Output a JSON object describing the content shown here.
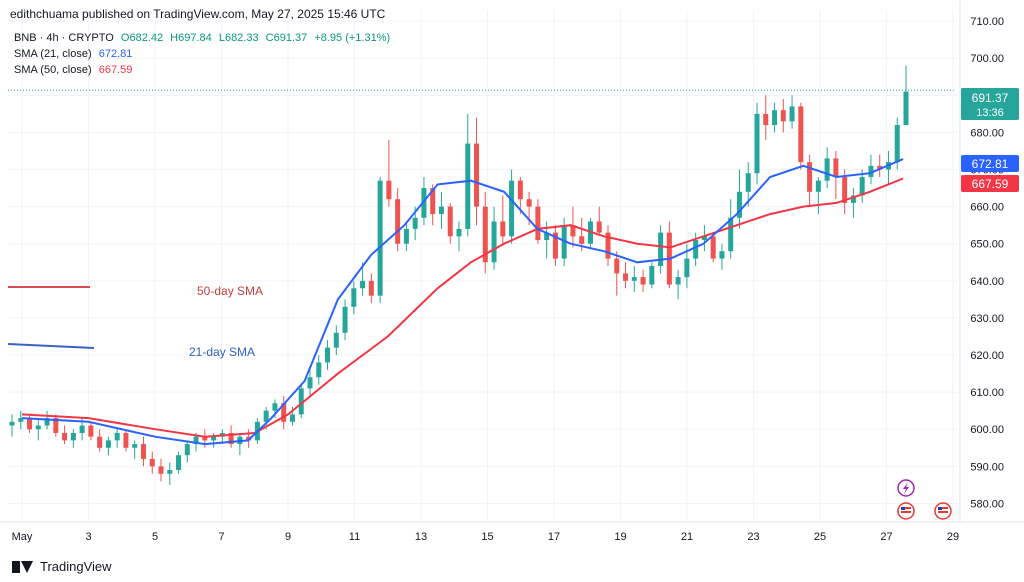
{
  "header": {
    "publisher": "edithchuama published on TradingView.com, May 27, 2025 15:46 UTC"
  },
  "legend": {
    "symbol_line": {
      "symbol": "BNB · 4h · CRYPTO",
      "open": "O682.42",
      "high": "H697.84",
      "low": "L682.33",
      "close": "C691.37",
      "change": "+8.95 (+1.31%)"
    },
    "sma21": {
      "label": "SMA (21, close)",
      "value": "672.81"
    },
    "sma50": {
      "label": "SMA (50, close)",
      "value": "667.59"
    }
  },
  "annotations": {
    "sma50_label": "50-day SMA",
    "sma21_label": "21-day SMA"
  },
  "price_badge": {
    "price": "691.37",
    "countdown": "13:36"
  },
  "sma21_badge": "672.81",
  "sma50_badge": "667.59",
  "footer": {
    "brand": "TradingView"
  },
  "colors": {
    "up": "#26a69a",
    "down": "#ef5350",
    "sma21": "#2962ff",
    "sma50": "#f23645",
    "price_line": "#26a69a"
  },
  "chart_data": {
    "type": "candlestick",
    "ylim": [
      575,
      713
    ],
    "y_ticks": [
      "580.00",
      "590.00",
      "600.00",
      "610.00",
      "620.00",
      "630.00",
      "640.00",
      "650.00",
      "660.00",
      "670.00",
      "680.00",
      "690.00",
      "700.00",
      "710.00"
    ],
    "x_ticks": [
      "May",
      "3",
      "5",
      "7",
      "9",
      "11",
      "13",
      "15",
      "17",
      "19",
      "21",
      "23",
      "25",
      "27",
      "29"
    ],
    "current_price": 691.37,
    "sma21": [
      [
        1,
        603
      ],
      [
        3,
        602
      ],
      [
        5,
        598
      ],
      [
        6.5,
        596
      ],
      [
        7.8,
        597
      ],
      [
        8.5,
        603
      ],
      [
        9.5,
        613
      ],
      [
        10.5,
        635
      ],
      [
        11.5,
        647
      ],
      [
        12.5,
        655
      ],
      [
        13.5,
        666
      ],
      [
        14.5,
        667
      ],
      [
        15.5,
        664
      ],
      [
        16.5,
        654
      ],
      [
        17.5,
        650
      ],
      [
        18.5,
        648
      ],
      [
        19.5,
        645
      ],
      [
        20.5,
        646
      ],
      [
        21.5,
        650
      ],
      [
        22.5,
        658
      ],
      [
        23.5,
        668
      ],
      [
        24.5,
        671
      ],
      [
        25.5,
        668
      ],
      [
        26.5,
        669
      ],
      [
        27.5,
        672.81
      ]
    ],
    "sma50": [
      [
        1,
        604
      ],
      [
        3,
        603
      ],
      [
        5,
        600
      ],
      [
        6.5,
        598
      ],
      [
        8,
        599
      ],
      [
        9,
        604
      ],
      [
        10.5,
        615
      ],
      [
        12,
        625
      ],
      [
        13.5,
        638
      ],
      [
        14.5,
        645
      ],
      [
        15.5,
        650
      ],
      [
        16.5,
        654
      ],
      [
        17.5,
        655
      ],
      [
        18.5,
        652
      ],
      [
        19.5,
        650
      ],
      [
        20.5,
        649
      ],
      [
        21.5,
        652
      ],
      [
        22.5,
        655
      ],
      [
        23.5,
        658
      ],
      [
        24.5,
        660
      ],
      [
        25.5,
        661
      ],
      [
        26.5,
        664
      ],
      [
        27.5,
        667.59
      ]
    ],
    "candles": [
      [
        601,
        604,
        598,
        602
      ],
      [
        602,
        605,
        600,
        603
      ],
      [
        603,
        604,
        599,
        600
      ],
      [
        600,
        603,
        597,
        601
      ],
      [
        601,
        605,
        600,
        603
      ],
      [
        603,
        604,
        598,
        599
      ],
      [
        599,
        601,
        596,
        597
      ],
      [
        597,
        600,
        595,
        599
      ],
      [
        599,
        603,
        597,
        601
      ],
      [
        601,
        602,
        597,
        598
      ],
      [
        598,
        600,
        594,
        595
      ],
      [
        595,
        598,
        593,
        597
      ],
      [
        597,
        600,
        595,
        599
      ],
      [
        599,
        600,
        594,
        595
      ],
      [
        595,
        597,
        592,
        596
      ],
      [
        596,
        598,
        590,
        592
      ],
      [
        592,
        594,
        588,
        590
      ],
      [
        590,
        592,
        586,
        588
      ],
      [
        588,
        591,
        585,
        589
      ],
      [
        589,
        594,
        588,
        593
      ],
      [
        593,
        597,
        591,
        596
      ],
      [
        596,
        599,
        594,
        598
      ],
      [
        598,
        600,
        595,
        597
      ],
      [
        597,
        599,
        595,
        598
      ],
      [
        598,
        600,
        596,
        599
      ],
      [
        599,
        601,
        595,
        596
      ],
      [
        596,
        599,
        593,
        598
      ],
      [
        598,
        600,
        595,
        597
      ],
      [
        597,
        603,
        596,
        602
      ],
      [
        602,
        606,
        600,
        605
      ],
      [
        605,
        608,
        603,
        607
      ],
      [
        607,
        609,
        600,
        602
      ],
      [
        602,
        606,
        601,
        604
      ],
      [
        604,
        612,
        603,
        611
      ],
      [
        611,
        616,
        609,
        614
      ],
      [
        614,
        620,
        612,
        618
      ],
      [
        618,
        624,
        616,
        622
      ],
      [
        622,
        628,
        620,
        626
      ],
      [
        626,
        635,
        624,
        633
      ],
      [
        633,
        640,
        631,
        638
      ],
      [
        638,
        645,
        636,
        640
      ],
      [
        640,
        642,
        634,
        636
      ],
      [
        636,
        668,
        634,
        667
      ],
      [
        667,
        678,
        660,
        662
      ],
      [
        662,
        665,
        648,
        650
      ],
      [
        650,
        656,
        648,
        654
      ],
      [
        654,
        660,
        651,
        657
      ],
      [
        657,
        668,
        655,
        665
      ],
      [
        665,
        666,
        655,
        658
      ],
      [
        658,
        664,
        654,
        660
      ],
      [
        660,
        661,
        650,
        652
      ],
      [
        652,
        656,
        648,
        654
      ],
      [
        654,
        685,
        652,
        677
      ],
      [
        677,
        684,
        655,
        660
      ],
      [
        660,
        664,
        642,
        645
      ],
      [
        645,
        660,
        643,
        656
      ],
      [
        656,
        663,
        650,
        652
      ],
      [
        652,
        670,
        650,
        667
      ],
      [
        667,
        668,
        658,
        662
      ],
      [
        662,
        664,
        655,
        660
      ],
      [
        660,
        662,
        650,
        651
      ],
      [
        651,
        656,
        646,
        653
      ],
      [
        653,
        655,
        644,
        646
      ],
      [
        646,
        657,
        644,
        655
      ],
      [
        655,
        660,
        649,
        652
      ],
      [
        652,
        657,
        648,
        650
      ],
      [
        650,
        657,
        649,
        656
      ],
      [
        656,
        660,
        652,
        653
      ],
      [
        653,
        655,
        644,
        646
      ],
      [
        646,
        648,
        636,
        642
      ],
      [
        642,
        645,
        638,
        640
      ],
      [
        640,
        644,
        637,
        641
      ],
      [
        641,
        643,
        637,
        639
      ],
      [
        639,
        645,
        638,
        644
      ],
      [
        644,
        655,
        642,
        653
      ],
      [
        653,
        656,
        638,
        639
      ],
      [
        639,
        643,
        635,
        641
      ],
      [
        641,
        650,
        638,
        646
      ],
      [
        646,
        653,
        644,
        651
      ],
      [
        651,
        655,
        648,
        652
      ],
      [
        652,
        653,
        645,
        646
      ],
      [
        646,
        650,
        643,
        648
      ],
      [
        648,
        662,
        646,
        657
      ],
      [
        657,
        670,
        654,
        664
      ],
      [
        664,
        672,
        660,
        669
      ],
      [
        669,
        688,
        666,
        685
      ],
      [
        685,
        690,
        678,
        682
      ],
      [
        682,
        688,
        680,
        686
      ],
      [
        686,
        689,
        680,
        683
      ],
      [
        683,
        690,
        681,
        687
      ],
      [
        687,
        688,
        670,
        672
      ],
      [
        672,
        674,
        660,
        664
      ],
      [
        664,
        668,
        658,
        667
      ],
      [
        667,
        676,
        665,
        673
      ],
      [
        673,
        675,
        662,
        668
      ],
      [
        668,
        670,
        658,
        661
      ],
      [
        661,
        665,
        657,
        663
      ],
      [
        663,
        670,
        661,
        668
      ],
      [
        668,
        674,
        666,
        671
      ],
      [
        671,
        674,
        668,
        670
      ],
      [
        670,
        675,
        666,
        672
      ],
      [
        672,
        684,
        670,
        682
      ],
      [
        682,
        698,
        682,
        691
      ]
    ]
  }
}
